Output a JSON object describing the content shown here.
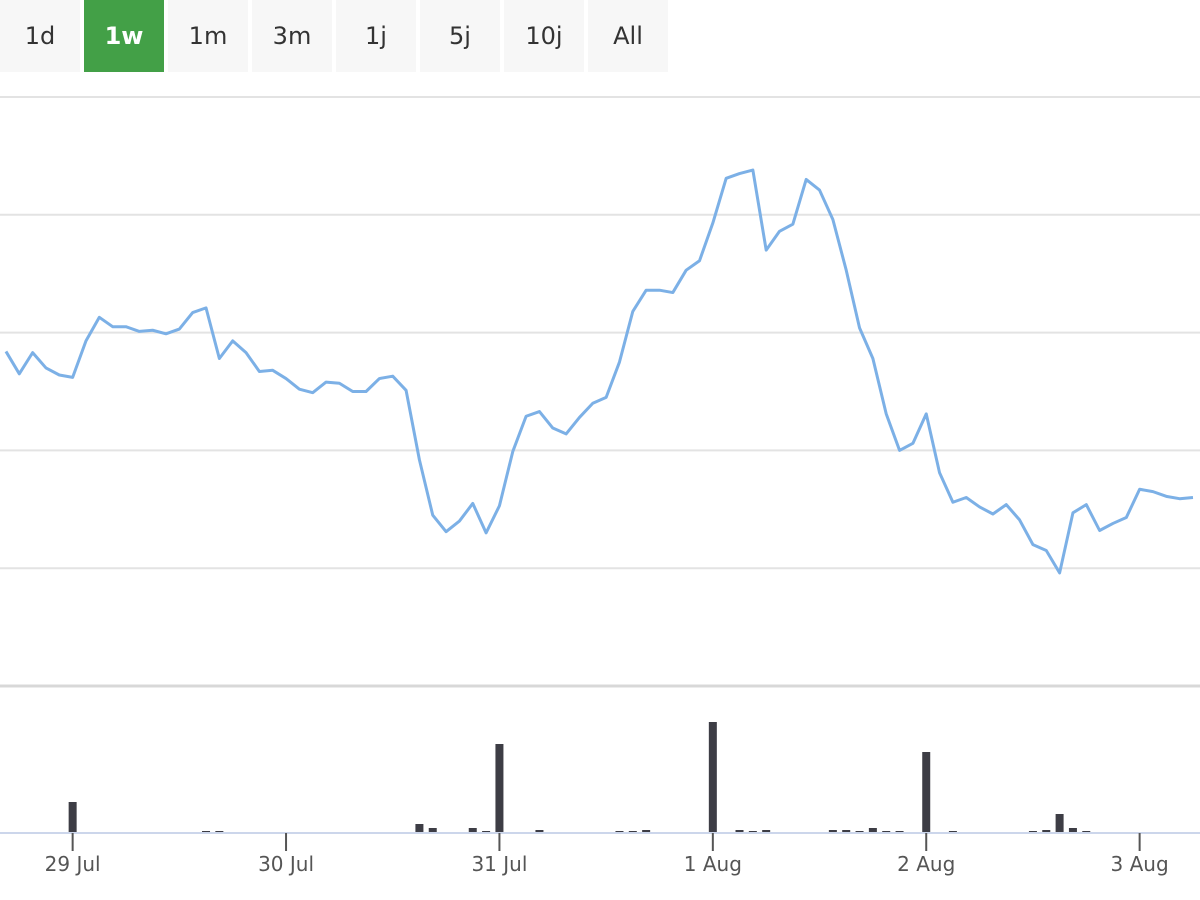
{
  "range_buttons": [
    "1d",
    "1w",
    "1m",
    "3m",
    "1j",
    "5j",
    "10j",
    "All"
  ],
  "selected_range": "1w",
  "chart_data": [
    {
      "type": "line",
      "x": [
        -7.5,
        -6,
        -4.5,
        -3,
        -1.5,
        0,
        1.5,
        3,
        4.5,
        6,
        7.5,
        9,
        10.5,
        12,
        13.5,
        15,
        16.5,
        18,
        19.5,
        21,
        22.5,
        24,
        25.5,
        27,
        28.5,
        30,
        31.5,
        33,
        34.5,
        36,
        37.5,
        39,
        40.5,
        42,
        43.5,
        45,
        46.5,
        48,
        49.5,
        51,
        52.5,
        54,
        55.5,
        57,
        58.5,
        60,
        61.5,
        63,
        64.5,
        66,
        67.5,
        69,
        70.5,
        72,
        73.5,
        75,
        76.5,
        78,
        79.5,
        81,
        82.5,
        84,
        85.5,
        87,
        88.5,
        90,
        91.5,
        93,
        94.5,
        96,
        97.5,
        99,
        100.5,
        102,
        103.5,
        105,
        106.5,
        108,
        109.5,
        111,
        112.5,
        114,
        115.5,
        117,
        118.5,
        120,
        121.5,
        123,
        124.5,
        126
      ],
      "series": [
        {
          "color": "#7cb0e6",
          "values": [
            2.84,
            2.65,
            2.83,
            2.7,
            2.64,
            2.62,
            2.93,
            3.13,
            3.05,
            3.05,
            3.01,
            3.02,
            2.99,
            3.03,
            3.17,
            3.21,
            2.78,
            2.93,
            2.83,
            2.67,
            2.68,
            2.61,
            2.52,
            2.49,
            2.58,
            2.57,
            2.5,
            2.5,
            2.61,
            2.63,
            2.51,
            1.92,
            1.45,
            1.31,
            1.4,
            1.55,
            1.3,
            1.53,
            1.99,
            2.29,
            2.33,
            2.19,
            2.14,
            2.28,
            2.4,
            2.45,
            2.75,
            3.18,
            3.36,
            3.36,
            3.34,
            3.53,
            3.61,
            3.93,
            4.31,
            4.35,
            4.38,
            3.7,
            3.86,
            3.92,
            4.3,
            4.21,
            3.96,
            3.53,
            3.04,
            2.78,
            2.31,
            2.0,
            2.06,
            2.31,
            1.81,
            1.56,
            1.6,
            1.52,
            1.46,
            1.54,
            1.41,
            1.2,
            1.15,
            0.96,
            1.47,
            1.54,
            1.32,
            1.38,
            1.43,
            1.67,
            1.65,
            1.61,
            1.59,
            1.6
          ]
        }
      ],
      "xlim": [
        -8.17,
        126.79
      ],
      "ylim": [
        0,
        5
      ],
      "yticks": [
        1,
        2,
        3,
        4,
        5
      ],
      "grid": true
    },
    {
      "type": "bar",
      "x": [
        0,
        15,
        16.5,
        39,
        40.5,
        45,
        46.5,
        48,
        52.5,
        61.5,
        63,
        64.5,
        72,
        75,
        76.5,
        78,
        85.5,
        87,
        88.5,
        90,
        91.5,
        93,
        96,
        99,
        108,
        109.5,
        111,
        112.5,
        114
      ],
      "values": [
        31,
        2,
        2,
        9,
        5,
        5,
        2,
        89,
        3,
        2,
        2,
        3,
        111,
        3,
        2,
        3,
        3,
        3,
        2,
        5,
        2,
        2,
        81,
        2,
        2,
        3,
        19,
        5,
        2
      ],
      "color": "#3d3d45",
      "xlim": [
        -8.17,
        126.79
      ],
      "ylim": [
        0,
        147
      ],
      "xticks": [
        {
          "value": 0,
          "label": "29 Jul"
        },
        {
          "value": 24,
          "label": "30 Jul"
        },
        {
          "value": 48,
          "label": "31 Jul"
        },
        {
          "value": 72,
          "label": "1 Aug"
        },
        {
          "value": 96,
          "label": "2 Aug"
        },
        {
          "value": 120,
          "label": "3 Aug"
        }
      ]
    }
  ]
}
